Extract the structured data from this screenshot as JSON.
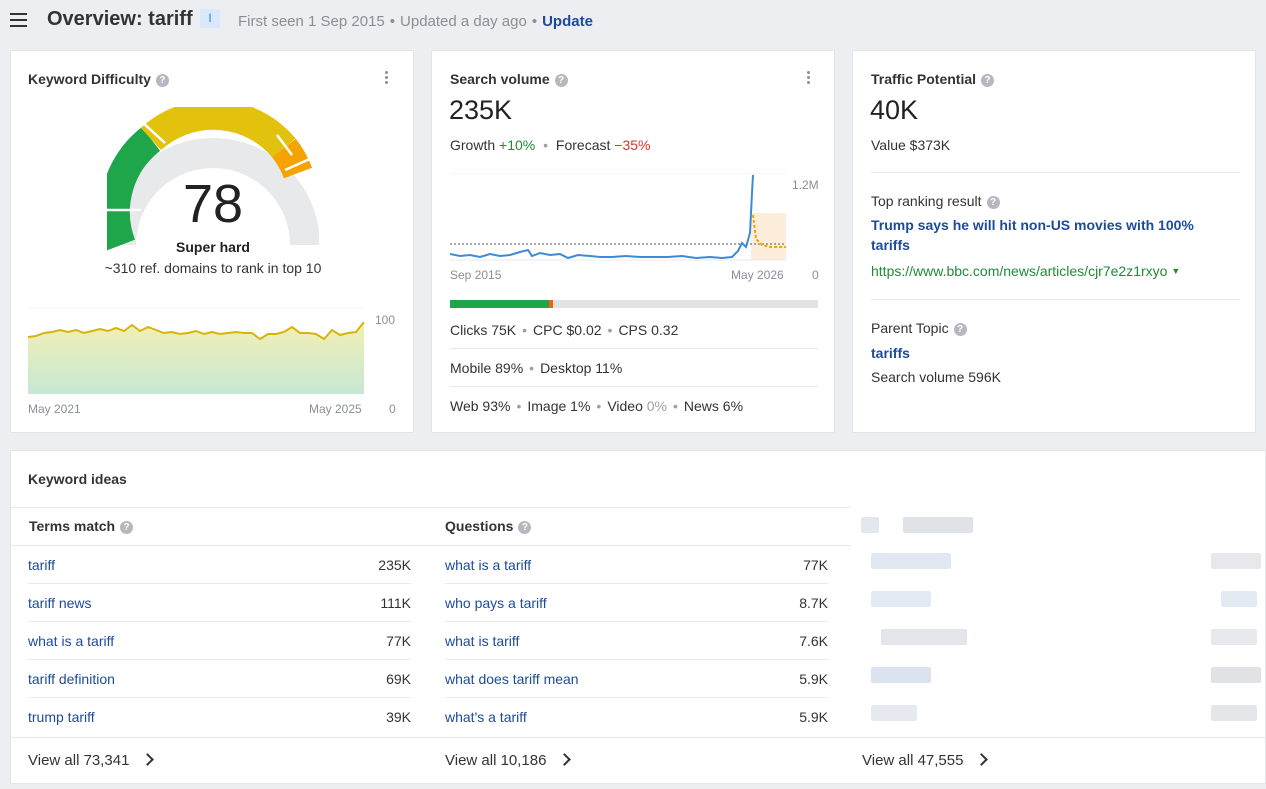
{
  "header": {
    "title": "Overview: tariff",
    "intent_badge": "I",
    "first_seen": "First seen 1 Sep 2015",
    "updated": "Updated a day ago",
    "update_link": "Update"
  },
  "kd": {
    "title": "Keyword Difficulty",
    "score": "78",
    "label": "Super hard",
    "subtitle": "~310 ref. domains to rank in top 10",
    "chart": {
      "y_max_label": "100",
      "y_min_label": "0",
      "x_start": "May 2021",
      "x_end": "May 2025"
    }
  },
  "sv": {
    "title": "Search volume",
    "value": "235K",
    "growth_label": "Growth",
    "growth_value": "+10%",
    "forecast_label": "Forecast",
    "forecast_value": "−35%",
    "chart": {
      "y_max_label": "1.2M",
      "y_min_label": "0",
      "x_start": "Sep 2015",
      "x_end": "May 2026"
    },
    "clicks_split": {
      "green": 0.27,
      "orange": 0.01,
      "grey": 0.72
    },
    "clicks": "Clicks 75K",
    "cpc": "CPC $0.02",
    "cps": "CPS 0.32",
    "mobile": "Mobile 89%",
    "desktop": "Desktop 11%",
    "web": "Web 93%",
    "image": "Image 1%",
    "video_label": "Video",
    "video_value": "0%",
    "news": "News 6%"
  },
  "tp": {
    "title": "Traffic Potential",
    "value": "40K",
    "value_label": "Value $373K",
    "top_result_label": "Top ranking result",
    "top_result_title_1": "Trump says he will hit non-US movies with 100%",
    "top_result_title_2": "tariffs",
    "top_result_url": "https://www.bbc.com/news/articles/cjr7e2z1rxyo",
    "parent_topic_label": "Parent Topic",
    "parent_topic": "tariffs",
    "parent_volume": "Search volume 596K"
  },
  "ideas": {
    "title": "Keyword ideas",
    "terms": {
      "header": "Terms match",
      "rows": [
        {
          "kw": "tariff",
          "vol": "235K"
        },
        {
          "kw": "tariff news",
          "vol": "111K"
        },
        {
          "kw": "what is a tariff",
          "vol": "77K"
        },
        {
          "kw": "tariff definition",
          "vol": "69K"
        },
        {
          "kw": "trump tariff",
          "vol": "39K"
        }
      ],
      "view_all": "View all 73,341"
    },
    "questions": {
      "header": "Questions",
      "rows": [
        {
          "kw": "what is a tariff",
          "vol": "77K"
        },
        {
          "kw": "who pays a tariff",
          "vol": "8.7K"
        },
        {
          "kw": "what is tariff",
          "vol": "7.6K"
        },
        {
          "kw": "what does tariff mean",
          "vol": "5.9K"
        },
        {
          "kw": "what's a tariff",
          "vol": "5.9K"
        }
      ],
      "view_all": "View all 10,186"
    },
    "third": {
      "view_all": "View all 47,555"
    }
  },
  "colors": {
    "link": "#1d4b99",
    "kd_green": "#1fa64a",
    "kd_yellow": "#e3c20e",
    "kd_orange": "#f5a300",
    "sv_line": "#3c8ad8",
    "forecast": "#f5a300"
  }
}
